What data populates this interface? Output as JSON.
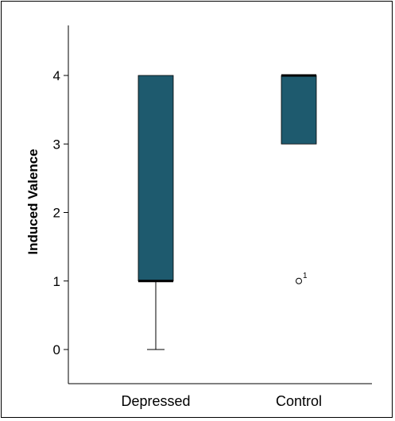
{
  "chart_data": {
    "type": "boxplot",
    "ylabel": "Induced Valence",
    "xlabel": "",
    "ylim": [
      -0.5,
      4.75
    ],
    "yticks": [
      0,
      1,
      2,
      3,
      4
    ],
    "grid": false,
    "box_color": "#1e5a6e",
    "groups": [
      {
        "category": "Depressed",
        "min": 0,
        "q1": 1,
        "median": 1,
        "q3": 4,
        "max": 4,
        "outliers": []
      },
      {
        "category": "Control",
        "min": 3,
        "q1": 3,
        "median": 4,
        "q3": 4,
        "max": 4,
        "outliers": [
          {
            "value": 1,
            "label": "1"
          }
        ]
      }
    ]
  }
}
